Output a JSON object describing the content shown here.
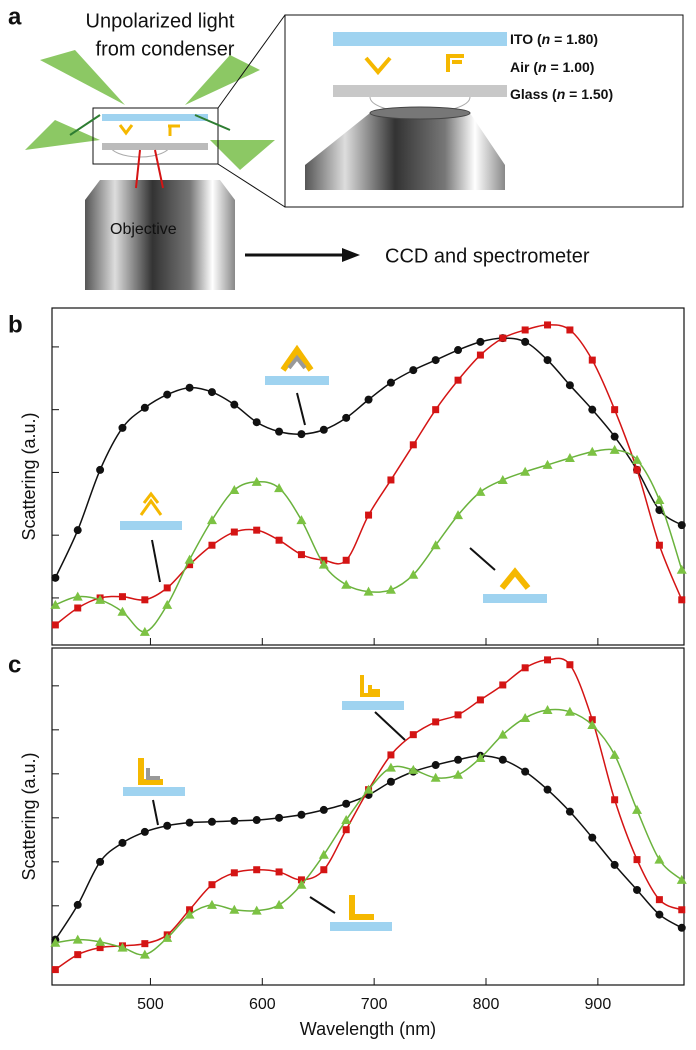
{
  "diagram": {
    "label": "a",
    "light_lines": [
      "Unpolarized light",
      "from condenser"
    ],
    "objective": "Objective",
    "detector": "CCD and spectrometer",
    "layers": [
      {
        "pre": "ITO (",
        "symbol": "n",
        "post": " = 1.80)"
      },
      {
        "pre": "Air (",
        "symbol": "n",
        "post": " = 1.00)"
      },
      {
        "pre": "Glass (",
        "symbol": "n",
        "post": " = 1.50)"
      }
    ]
  },
  "chart_data": [
    {
      "type": "line",
      "label": "b",
      "ylabel": "Scattering (a.u.)",
      "show_xtick_labels": false,
      "x": [
        415,
        435,
        455,
        475,
        495,
        515,
        535,
        555,
        575,
        595,
        615,
        635,
        655,
        675,
        695,
        715,
        735,
        755,
        775,
        795,
        815,
        835,
        855,
        875,
        895,
        915,
        935,
        955,
        975
      ],
      "xlim": [
        412,
        977
      ],
      "xticks": [
        500,
        600,
        700,
        800,
        900
      ],
      "ylim": [
        0.25,
        5.62
      ],
      "yticks": [
        1,
        2,
        3,
        4,
        5
      ],
      "series": [
        {
          "color": "#111111",
          "marker": "circle",
          "values": [
            1.32,
            2.08,
            3.04,
            3.71,
            4.03,
            4.24,
            4.35,
            4.28,
            4.08,
            3.8,
            3.65,
            3.61,
            3.68,
            3.87,
            4.16,
            4.43,
            4.63,
            4.79,
            4.95,
            5.08,
            5.14,
            5.08,
            4.79,
            4.39,
            4.0,
            3.57,
            3.04,
            2.4,
            2.16
          ]
        },
        {
          "color": "#d41414",
          "marker": "square",
          "values": [
            0.57,
            0.84,
            1.0,
            1.02,
            0.97,
            1.16,
            1.53,
            1.84,
            2.05,
            2.08,
            1.92,
            1.69,
            1.6,
            1.6,
            2.32,
            2.88,
            3.44,
            4.0,
            4.47,
            4.87,
            5.14,
            5.27,
            5.35,
            5.27,
            4.79,
            4.0,
            3.04,
            1.84,
            0.97
          ]
        },
        {
          "color": "#6ab23c",
          "marker": "triangle",
          "values": [
            0.89,
            1.02,
            0.97,
            0.78,
            0.46,
            0.89,
            1.61,
            2.24,
            2.72,
            2.85,
            2.75,
            2.24,
            1.53,
            1.21,
            1.1,
            1.13,
            1.37,
            1.84,
            2.32,
            2.69,
            2.88,
            3.01,
            3.12,
            3.23,
            3.33,
            3.36,
            3.2,
            2.56,
            1.45
          ]
        }
      ]
    },
    {
      "type": "line",
      "label": "c",
      "ylabel": "Scattering (a.u.)",
      "xlabel": "Wavelength (nm)",
      "show_xtick_labels": true,
      "x": [
        415,
        435,
        455,
        475,
        495,
        515,
        535,
        555,
        575,
        595,
        615,
        635,
        655,
        675,
        695,
        715,
        735,
        755,
        775,
        795,
        815,
        835,
        855,
        875,
        895,
        915,
        935,
        955,
        975
      ],
      "xlim": [
        412,
        977
      ],
      "xticks": [
        500,
        600,
        700,
        800,
        900
      ],
      "ylim": [
        -0.8,
        6.86
      ],
      "yticks": [
        1,
        2,
        3,
        4,
        5,
        6
      ],
      "series": [
        {
          "color": "#111111",
          "marker": "circle",
          "values": [
            0.23,
            1.02,
            2.0,
            2.43,
            2.68,
            2.82,
            2.89,
            2.91,
            2.93,
            2.95,
            3.0,
            3.07,
            3.18,
            3.32,
            3.52,
            3.82,
            4.05,
            4.2,
            4.32,
            4.41,
            4.32,
            4.05,
            3.64,
            3.14,
            2.55,
            1.93,
            1.36,
            0.8,
            0.5
          ]
        },
        {
          "color": "#d41414",
          "marker": "square",
          "values": [
            -0.45,
            -0.11,
            0.05,
            0.09,
            0.14,
            0.34,
            0.91,
            1.48,
            1.75,
            1.82,
            1.77,
            1.59,
            1.82,
            2.73,
            3.64,
            4.43,
            4.89,
            5.18,
            5.34,
            5.68,
            6.02,
            6.41,
            6.59,
            6.48,
            5.23,
            3.41,
            2.05,
            1.14,
            0.91
          ]
        },
        {
          "color": "#6ab23c",
          "marker": "triangle",
          "values": [
            0.16,
            0.23,
            0.18,
            0.05,
            -0.11,
            0.27,
            0.8,
            1.02,
            0.91,
            0.89,
            1.02,
            1.48,
            2.16,
            2.95,
            3.64,
            4.14,
            4.09,
            3.91,
            3.98,
            4.36,
            4.89,
            5.27,
            5.45,
            5.41,
            5.11,
            4.43,
            3.18,
            2.05,
            1.59
          ]
        }
      ]
    }
  ]
}
